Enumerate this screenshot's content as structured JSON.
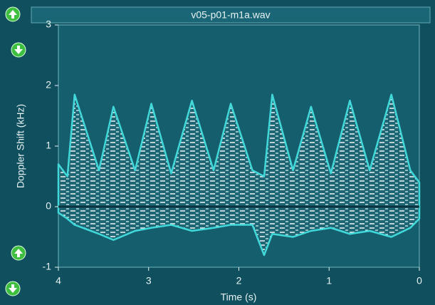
{
  "chart_data": {
    "type": "area",
    "title": "v05-p01-m1a.wav",
    "xlabel": "Time (s)",
    "ylabel": "Doppler Shift (kHz)",
    "x": [
      4.0,
      3.9,
      3.82,
      3.55,
      3.39,
      3.15,
      2.97,
      2.75,
      2.52,
      2.28,
      2.09,
      1.85,
      1.72,
      1.63,
      1.4,
      1.2,
      0.98,
      0.77,
      0.55,
      0.31,
      0.1,
      0.0
    ],
    "series": [
      {
        "color": "#40d8d8",
        "values": [
          0.7,
          0.5,
          1.85,
          0.6,
          1.65,
          0.6,
          1.7,
          0.55,
          1.75,
          0.6,
          1.7,
          0.6,
          0.5,
          1.85,
          0.6,
          1.65,
          0.55,
          1.75,
          0.6,
          1.85,
          0.6,
          0.4
        ]
      },
      {
        "color": "#40d8d8",
        "values": [
          -0.1,
          -0.2,
          -0.3,
          -0.45,
          -0.55,
          -0.4,
          -0.35,
          -0.3,
          -0.4,
          -0.35,
          -0.3,
          -0.3,
          -0.8,
          -0.45,
          -0.5,
          -0.4,
          -0.35,
          -0.45,
          -0.4,
          -0.5,
          -0.35,
          -0.2
        ]
      }
    ],
    "xlim": [
      4,
      0
    ],
    "ylim": [
      -1,
      3
    ],
    "xticks": [
      4,
      3,
      2,
      1,
      0
    ],
    "yticks": [
      -1,
      0,
      1,
      2,
      3
    ]
  }
}
